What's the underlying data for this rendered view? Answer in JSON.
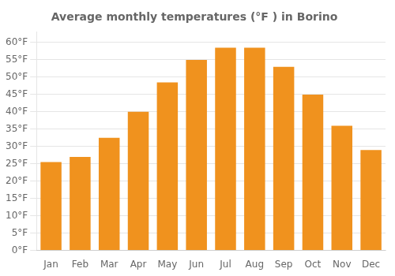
{
  "chart_data": {
    "type": "bar",
    "title": "Average monthly temperatures (°F ) in Borino",
    "categories": [
      "Jan",
      "Feb",
      "Mar",
      "Apr",
      "May",
      "Jun",
      "Jul",
      "Aug",
      "Sep",
      "Oct",
      "Nov",
      "Dec"
    ],
    "values": [
      25.5,
      27.0,
      32.5,
      40.0,
      48.5,
      55.0,
      58.5,
      58.5,
      53.0,
      45.0,
      36.0,
      29.0
    ],
    "color": "#F0921E",
    "ylim": [
      0,
      63
    ],
    "yticks": [
      {
        "value": 0,
        "label": "0°F"
      },
      {
        "value": 5,
        "label": "5°F"
      },
      {
        "value": 10,
        "label": "10°F"
      },
      {
        "value": 15,
        "label": "15°F"
      },
      {
        "value": 20,
        "label": "20°F"
      },
      {
        "value": 25,
        "label": "25°F"
      },
      {
        "value": 30,
        "label": "30°F"
      },
      {
        "value": 35,
        "label": "35°F"
      },
      {
        "value": 40,
        "label": "40°F"
      },
      {
        "value": 45,
        "label": "45°F"
      },
      {
        "value": 50,
        "label": "50°F"
      },
      {
        "value": 55,
        "label": "55°F"
      },
      {
        "value": 60,
        "label": "60°F"
      }
    ],
    "grid": true
  }
}
